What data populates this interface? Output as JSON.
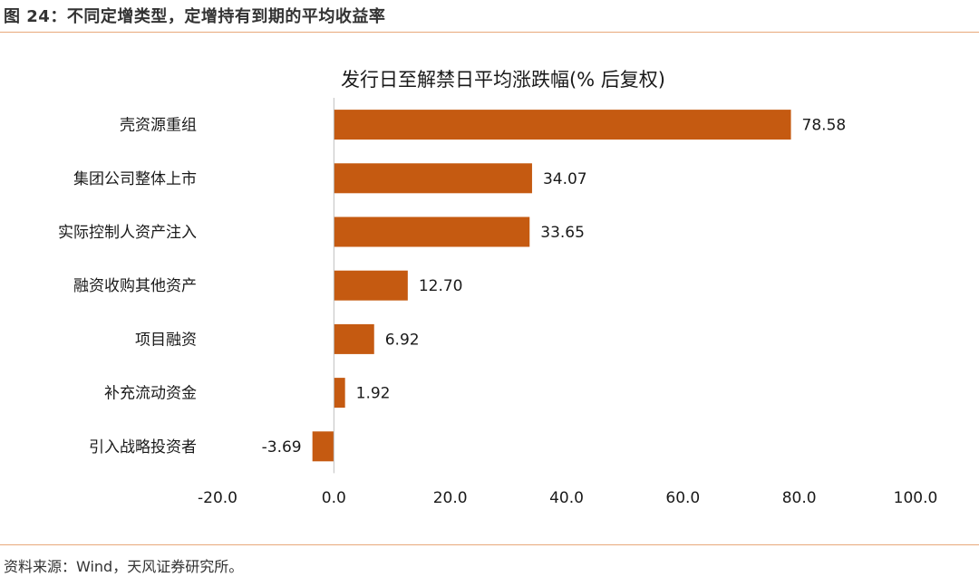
{
  "figure_title": "图 24：不同定增类型，定增持有到期的平均收益率",
  "source_text": "资料来源：Wind，天风证券研究所。",
  "colors": {
    "bar": "#C55A11",
    "rule": "#E8A97A",
    "axis": "#BFBFBF"
  },
  "chart_data": {
    "type": "bar",
    "orientation": "horizontal",
    "title": "发行日至解禁日平均涨跌幅(% 后复权)",
    "categories": [
      "壳资源重组",
      "集团公司整体上市",
      "实际控制人资产注入",
      "融资收购其他资产",
      "项目融资",
      "补充流动资金",
      "引入战略投资者"
    ],
    "values": [
      78.58,
      34.07,
      33.65,
      12.7,
      6.92,
      1.92,
      -3.69
    ],
    "value_labels": [
      "78.58",
      "34.07",
      "33.65",
      "12.70",
      "6.92",
      "1.92",
      "-3.69"
    ],
    "xlim": [
      -20,
      100
    ],
    "ticks": [
      -20,
      0,
      20,
      40,
      60,
      80,
      100
    ],
    "tick_labels": [
      "-20.0",
      "0.0",
      "20.0",
      "40.0",
      "60.0",
      "80.0",
      "100.0"
    ],
    "grid": false,
    "legend": "none"
  }
}
